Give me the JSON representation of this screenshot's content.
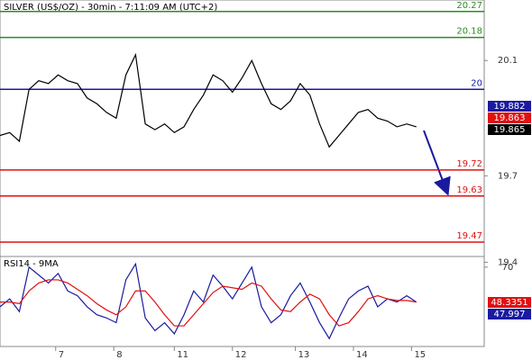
{
  "chart_data": [
    {
      "type": "line",
      "title": "SILVER (US$/OZ) - 30min - 7:11:09 AM (UTC+2)",
      "x": [
        0,
        2,
        4,
        6,
        8,
        10,
        12,
        14,
        16,
        18,
        20,
        22,
        24,
        26,
        28,
        30,
        32,
        34,
        36,
        38,
        40,
        42,
        44,
        46,
        48,
        50,
        52,
        54,
        56,
        58,
        60,
        62,
        64,
        66,
        68,
        70,
        72,
        74,
        76,
        78,
        80,
        82,
        84,
        86
      ],
      "series": [
        {
          "name": "SILVER",
          "color": "#000000",
          "values": [
            19.84,
            19.85,
            19.82,
            20.0,
            20.03,
            20.02,
            20.05,
            20.03,
            20.02,
            19.97,
            19.95,
            19.92,
            19.9,
            20.05,
            20.12,
            19.88,
            19.86,
            19.88,
            19.85,
            19.87,
            19.93,
            19.98,
            20.05,
            20.03,
            19.99,
            20.04,
            20.1,
            20.02,
            19.95,
            19.93,
            19.96,
            20.02,
            19.98,
            19.88,
            19.8,
            19.84,
            19.88,
            19.92,
            19.93,
            19.9,
            19.89,
            19.87,
            19.88,
            19.87
          ]
        }
      ],
      "levels": [
        {
          "value": 20.27,
          "color": "#2e8b22"
        },
        {
          "value": 20.18,
          "color": "#2e8b22"
        },
        {
          "value": 20,
          "color": "#1a1aa0"
        },
        {
          "value": 19.72,
          "color": "#e01010"
        },
        {
          "value": 19.63,
          "color": "#e01010"
        },
        {
          "value": 19.47,
          "color": "#e01010"
        }
      ],
      "price_tags": [
        {
          "value": 19.882,
          "color": "#1a1aa0"
        },
        {
          "value": 19.863,
          "color": "#e01010"
        },
        {
          "value": 19.865,
          "color": "#000000"
        }
      ],
      "xlim": [
        0,
        100
      ],
      "ylim": [
        19.42,
        20.31
      ],
      "yticks": [
        20.1,
        19.7,
        19.4
      ],
      "xticks": [
        {
          "value": 11.5,
          "label": "7"
        },
        {
          "value": 23.5,
          "label": "8"
        },
        {
          "value": 36,
          "label": "11"
        },
        {
          "value": 48,
          "label": "12"
        },
        {
          "value": 61,
          "label": "13"
        },
        {
          "value": 73,
          "label": "14"
        },
        {
          "value": 85,
          "label": "15"
        }
      ]
    },
    {
      "type": "line",
      "title": "RSI14 - 9MA",
      "x": [
        0,
        2,
        4,
        6,
        8,
        10,
        12,
        14,
        16,
        18,
        20,
        22,
        24,
        26,
        28,
        30,
        32,
        34,
        36,
        38,
        40,
        42,
        44,
        46,
        48,
        50,
        52,
        54,
        56,
        58,
        60,
        62,
        64,
        66,
        68,
        70,
        72,
        74,
        76,
        78,
        80,
        82,
        84,
        86
      ],
      "series": [
        {
          "name": "RSI14",
          "color": "#1a1aa0",
          "values": [
            45,
            50,
            42,
            70,
            65,
            60,
            66,
            55,
            52,
            45,
            40,
            38,
            35,
            62,
            72,
            38,
            30,
            35,
            28,
            40,
            55,
            48,
            65,
            58,
            50,
            60,
            70,
            45,
            35,
            40,
            52,
            60,
            48,
            35,
            25,
            38,
            50,
            55,
            58,
            45,
            50,
            48,
            52,
            48
          ]
        },
        {
          "name": "9MA",
          "color": "#e01010",
          "values": [
            48,
            48,
            47,
            55,
            60,
            62,
            62,
            60,
            56,
            52,
            47,
            43,
            40,
            45,
            55,
            55,
            48,
            40,
            33,
            33,
            40,
            47,
            54,
            58,
            57,
            56,
            60,
            58,
            50,
            43,
            42,
            48,
            53,
            50,
            40,
            33,
            35,
            42,
            50,
            52,
            50,
            49,
            49,
            48
          ]
        }
      ],
      "price_tags": [
        {
          "value": 48.3351,
          "color": "#e01010"
        },
        {
          "value": 47.997,
          "color": "#1a1aa0"
        }
      ],
      "xlim": [
        0,
        100
      ],
      "ylim": [
        20,
        75
      ],
      "yticks": [
        70
      ]
    }
  ]
}
